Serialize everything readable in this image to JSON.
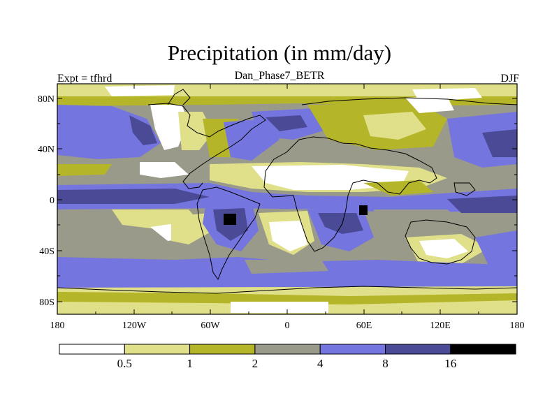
{
  "title": "Precipitation (in mm/day)",
  "subtitle": "Dan_Phase7_BETR",
  "left_label": "Expt = tfhrd",
  "right_label": "DJF",
  "x_ticks": [
    "180",
    "120W",
    "60W",
    "0",
    "60E",
    "120E",
    "180"
  ],
  "y_ticks": [
    "80N",
    "40N",
    "0",
    "40S",
    "80S"
  ],
  "legend": {
    "labels": [
      "0.5",
      "1",
      "2",
      "4",
      "8",
      "16"
    ],
    "colors": [
      "#ffffff",
      "#e0e08a",
      "#b5b52a",
      "#9a9a8a",
      "#7575e0",
      "#4a4a96",
      "#000000"
    ]
  }
}
